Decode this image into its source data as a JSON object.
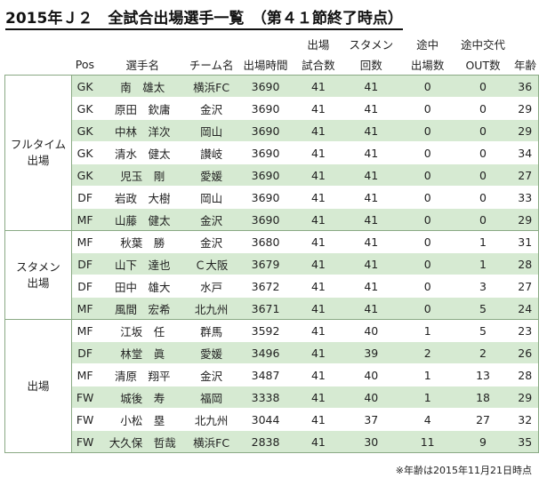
{
  "title": "2015年Ｊ２　全試合出場選手一覧　（第４１節終了時点）",
  "headers": {
    "pos": "Pos",
    "name": "選手名",
    "team": "チーム名",
    "minutes": "出場時間",
    "apps_l1": "出場",
    "apps_l2": "試合数",
    "starts_l1": "スタメン",
    "starts_l2": "回数",
    "subin_l1": "途中",
    "subin_l2": "出場数",
    "subout_l1": "途中交代",
    "subout_l2": "OUT数",
    "age": "年齢"
  },
  "groups": [
    {
      "label_l1": "フルタイム",
      "label_l2": "出場"
    },
    {
      "label_l1": "スタメン",
      "label_l2": "出場"
    },
    {
      "label_l1": "",
      "label_l2": "出場"
    }
  ],
  "rows": [
    {
      "pos": "GK",
      "name": "南　雄太",
      "team": "横浜FC",
      "minutes": "3690",
      "apps": "41",
      "starts": "41",
      "subin": "0",
      "subout": "0",
      "age": "36"
    },
    {
      "pos": "GK",
      "name": "原田　欽庸",
      "team": "金沢",
      "minutes": "3690",
      "apps": "41",
      "starts": "41",
      "subin": "0",
      "subout": "0",
      "age": "29"
    },
    {
      "pos": "GK",
      "name": "中林　洋次",
      "team": "岡山",
      "minutes": "3690",
      "apps": "41",
      "starts": "41",
      "subin": "0",
      "subout": "0",
      "age": "29"
    },
    {
      "pos": "GK",
      "name": "清水　健太",
      "team": "讃岐",
      "minutes": "3690",
      "apps": "41",
      "starts": "41",
      "subin": "0",
      "subout": "0",
      "age": "34"
    },
    {
      "pos": "GK",
      "name": "児玉　剛",
      "team": "愛媛",
      "minutes": "3690",
      "apps": "41",
      "starts": "41",
      "subin": "0",
      "subout": "0",
      "age": "27"
    },
    {
      "pos": "DF",
      "name": "岩政　大樹",
      "team": "岡山",
      "minutes": "3690",
      "apps": "41",
      "starts": "41",
      "subin": "0",
      "subout": "0",
      "age": "33"
    },
    {
      "pos": "MF",
      "name": "山藤　健太",
      "team": "金沢",
      "minutes": "3690",
      "apps": "41",
      "starts": "41",
      "subin": "0",
      "subout": "0",
      "age": "29"
    },
    {
      "pos": "MF",
      "name": "秋葉　勝",
      "team": "金沢",
      "minutes": "3680",
      "apps": "41",
      "starts": "41",
      "subin": "0",
      "subout": "1",
      "age": "31"
    },
    {
      "pos": "DF",
      "name": "山下　達也",
      "team": "Ｃ大阪",
      "minutes": "3679",
      "apps": "41",
      "starts": "41",
      "subin": "0",
      "subout": "1",
      "age": "28"
    },
    {
      "pos": "DF",
      "name": "田中　雄大",
      "team": "水戸",
      "minutes": "3672",
      "apps": "41",
      "starts": "41",
      "subin": "0",
      "subout": "3",
      "age": "27"
    },
    {
      "pos": "MF",
      "name": "風間　宏希",
      "team": "北九州",
      "minutes": "3671",
      "apps": "41",
      "starts": "41",
      "subin": "0",
      "subout": "5",
      "age": "24"
    },
    {
      "pos": "MF",
      "name": "江坂　任",
      "team": "群馬",
      "minutes": "3592",
      "apps": "41",
      "starts": "40",
      "subin": "1",
      "subout": "5",
      "age": "23"
    },
    {
      "pos": "DF",
      "name": "林堂　眞",
      "team": "愛媛",
      "minutes": "3496",
      "apps": "41",
      "starts": "39",
      "subin": "2",
      "subout": "2",
      "age": "26"
    },
    {
      "pos": "MF",
      "name": "清原　翔平",
      "team": "金沢",
      "minutes": "3487",
      "apps": "41",
      "starts": "40",
      "subin": "1",
      "subout": "13",
      "age": "28"
    },
    {
      "pos": "FW",
      "name": "城後　寿",
      "team": "福岡",
      "minutes": "3338",
      "apps": "41",
      "starts": "40",
      "subin": "1",
      "subout": "18",
      "age": "29"
    },
    {
      "pos": "FW",
      "name": "小松　塁",
      "team": "北九州",
      "minutes": "3044",
      "apps": "41",
      "starts": "37",
      "subin": "4",
      "subout": "27",
      "age": "32"
    },
    {
      "pos": "FW",
      "name": "大久保　哲哉",
      "team": "横浜FC",
      "minutes": "2838",
      "apps": "41",
      "starts": "30",
      "subin": "11",
      "subout": "9",
      "age": "35"
    }
  ],
  "note": "※年齢は2015年11月21日時点"
}
